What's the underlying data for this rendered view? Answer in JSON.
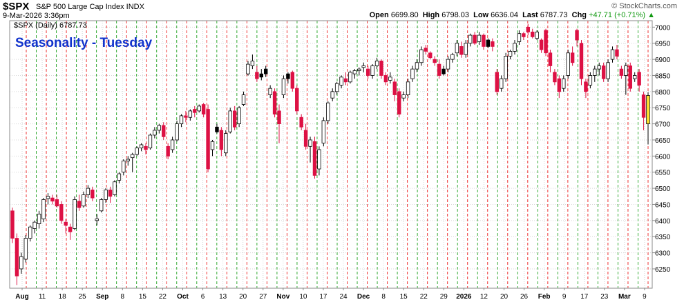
{
  "header": {
    "symbol": "$SPX",
    "description": "S&P 500 Large Cap Index  INDX",
    "datetime": "9-Mar-2026 3:36pm",
    "brand": "© StockCharts.com",
    "open_label": "Open",
    "open": "6699.80",
    "high_label": "High",
    "high": "6798.03",
    "low_label": "Low",
    "low": "6636.04",
    "last_label": "Last",
    "last": "6787.73",
    "chg_label": "Chg",
    "chg": "+47.71 (+0.71%)",
    "chg_arrow": "▲"
  },
  "chart_data": {
    "type": "candlestick",
    "title": "Seasonality - Tuesday",
    "legend": "$SPX (Daily) 6787.73",
    "ylim": [
      6190,
      7020
    ],
    "yticks": [
      6250,
      6300,
      6350,
      6400,
      6450,
      6500,
      6550,
      6600,
      6650,
      6700,
      6750,
      6800,
      6850,
      6900,
      6950,
      7000
    ],
    "xlabels": [
      "Aug",
      "11",
      "18",
      "25",
      "Sep",
      "8",
      "15",
      "22",
      "Oct",
      "6",
      "13",
      "20",
      "27",
      "Nov",
      "10",
      "17",
      "24",
      "Dec",
      "8",
      "15",
      "22",
      "29",
      "2026",
      "12",
      "20",
      "26",
      "Feb",
      "9",
      "17",
      "23",
      "Mar",
      "9"
    ],
    "colors": {
      "up": "#ffffff",
      "down": "#dd1144",
      "highlight": "#ffe030",
      "black": "#000000",
      "green_line": "#33aa33",
      "red_line": "#ee3333",
      "title": "#1133cc"
    },
    "candles": [
      {
        "o": 6430,
        "h": 6440,
        "l": 6330,
        "c": 6345
      },
      {
        "o": 6345,
        "h": 6360,
        "l": 6200,
        "c": 6228
      },
      {
        "o": 6250,
        "h": 6300,
        "l": 6235,
        "c": 6288
      },
      {
        "o": 6280,
        "h": 6355,
        "l": 6270,
        "c": 6345
      },
      {
        "o": 6345,
        "h": 6385,
        "l": 6335,
        "c": 6380
      },
      {
        "o": 6375,
        "h": 6400,
        "l": 6360,
        "c": 6395
      },
      {
        "o": 6390,
        "h": 6430,
        "l": 6375,
        "c": 6420
      },
      {
        "o": 6405,
        "h": 6470,
        "l": 6395,
        "c": 6465
      },
      {
        "o": 6468,
        "h": 6485,
        "l": 6450,
        "c": 6475
      },
      {
        "o": 6470,
        "h": 6480,
        "l": 6450,
        "c": 6460
      },
      {
        "o": 6465,
        "h": 6480,
        "l": 6440,
        "c": 6445
      },
      {
        "o": 6450,
        "h": 6460,
        "l": 6390,
        "c": 6400
      },
      {
        "o": 6395,
        "h": 6405,
        "l": 6360,
        "c": 6385
      },
      {
        "o": 6380,
        "h": 6390,
        "l": 6340,
        "c": 6365
      },
      {
        "o": 6375,
        "h": 6475,
        "l": 6370,
        "c": 6465
      },
      {
        "o": 6460,
        "h": 6480,
        "l": 6430,
        "c": 6440
      },
      {
        "o": 6445,
        "h": 6490,
        "l": 6440,
        "c": 6480
      },
      {
        "o": 6480,
        "h": 6510,
        "l": 6470,
        "c": 6500
      },
      {
        "o": 6495,
        "h": 6505,
        "l": 6460,
        "c": 6470
      },
      {
        "o": 6400,
        "h": 6420,
        "l": 6385,
        "c": 6405
      },
      {
        "o": 6430,
        "h": 6470,
        "l": 6425,
        "c": 6465
      },
      {
        "o": 6465,
        "h": 6500,
        "l": 6455,
        "c": 6495
      },
      {
        "o": 6495,
        "h": 6505,
        "l": 6455,
        "c": 6475
      },
      {
        "o": 6480,
        "h": 6525,
        "l": 6475,
        "c": 6520
      },
      {
        "o": 6525,
        "h": 6550,
        "l": 6515,
        "c": 6545
      },
      {
        "o": 6550,
        "h": 6590,
        "l": 6540,
        "c": 6585
      },
      {
        "o": 6585,
        "h": 6600,
        "l": 6570,
        "c": 6590
      },
      {
        "o": 6595,
        "h": 6610,
        "l": 6550,
        "c": 6605
      },
      {
        "o": 6605,
        "h": 6630,
        "l": 6600,
        "c": 6625
      },
      {
        "o": 6625,
        "h": 6640,
        "l": 6615,
        "c": 6635
      },
      {
        "o": 6630,
        "h": 6640,
        "l": 6605,
        "c": 6620
      },
      {
        "o": 6625,
        "h": 6670,
        "l": 6620,
        "c": 6665
      },
      {
        "o": 6665,
        "h": 6690,
        "l": 6655,
        "c": 6680
      },
      {
        "o": 6680,
        "h": 6700,
        "l": 6670,
        "c": 6695
      },
      {
        "o": 6695,
        "h": 6705,
        "l": 6650,
        "c": 6660
      },
      {
        "o": 6630,
        "h": 6640,
        "l": 6590,
        "c": 6600
      },
      {
        "o": 6620,
        "h": 6660,
        "l": 6610,
        "c": 6650
      },
      {
        "o": 6650,
        "h": 6710,
        "l": 6645,
        "c": 6700
      },
      {
        "o": 6700,
        "h": 6730,
        "l": 6690,
        "c": 6725
      },
      {
        "o": 6725,
        "h": 6740,
        "l": 6705,
        "c": 6720
      },
      {
        "o": 6720,
        "h": 6745,
        "l": 6710,
        "c": 6740
      },
      {
        "o": 6745,
        "h": 6755,
        "l": 6720,
        "c": 6735
      },
      {
        "o": 6740,
        "h": 6760,
        "l": 6735,
        "c": 6755
      },
      {
        "o": 6760,
        "h": 6765,
        "l": 6720,
        "c": 6730
      },
      {
        "o": 6745,
        "h": 6760,
        "l": 6550,
        "c": 6560
      },
      {
        "o": 6620,
        "h": 6650,
        "l": 6600,
        "c": 6645
      },
      {
        "o": 6690,
        "h": 6700,
        "l": 6670,
        "c": 6675,
        "k": 1
      },
      {
        "o": 6680,
        "h": 6690,
        "l": 6600,
        "c": 6620
      },
      {
        "o": 6610,
        "h": 6680,
        "l": 6600,
        "c": 6670
      },
      {
        "o": 6675,
        "h": 6750,
        "l": 6670,
        "c": 6740
      },
      {
        "o": 6740,
        "h": 6755,
        "l": 6680,
        "c": 6690
      },
      {
        "o": 6700,
        "h": 6755,
        "l": 6690,
        "c": 6750
      },
      {
        "o": 6760,
        "h": 6800,
        "l": 6755,
        "c": 6790
      },
      {
        "o": 6855,
        "h": 6895,
        "l": 6850,
        "c": 6885
      },
      {
        "o": 6880,
        "h": 6915,
        "l": 6870,
        "c": 6895
      },
      {
        "o": 6860,
        "h": 6880,
        "l": 6830,
        "c": 6840
      },
      {
        "o": 6845,
        "h": 6870,
        "l": 6835,
        "c": 6855,
        "k": 1
      },
      {
        "o": 6855,
        "h": 6880,
        "l": 6845,
        "c": 6870,
        "k": 1
      },
      {
        "o": 6790,
        "h": 6820,
        "l": 6780,
        "c": 6810
      },
      {
        "o": 6800,
        "h": 6810,
        "l": 6720,
        "c": 6730
      },
      {
        "o": 6740,
        "h": 6760,
        "l": 6640,
        "c": 6700
      },
      {
        "o": 6790,
        "h": 6850,
        "l": 6780,
        "c": 6840
      },
      {
        "o": 6840,
        "h": 6860,
        "l": 6825,
        "c": 6855,
        "k": 1
      },
      {
        "o": 6860,
        "h": 6865,
        "l": 6800,
        "c": 6810
      },
      {
        "o": 6810,
        "h": 6820,
        "l": 6730,
        "c": 6740
      },
      {
        "o": 6720,
        "h": 6730,
        "l": 6680,
        "c": 6690
      },
      {
        "o": 6680,
        "h": 6700,
        "l": 6620,
        "c": 6630
      },
      {
        "o": 6630,
        "h": 6660,
        "l": 6580,
        "c": 6650
      },
      {
        "o": 6645,
        "h": 6660,
        "l": 6530,
        "c": 6540
      },
      {
        "o": 6560,
        "h": 6630,
        "l": 6540,
        "c": 6620
      },
      {
        "o": 6640,
        "h": 6720,
        "l": 6630,
        "c": 6710
      },
      {
        "o": 6710,
        "h": 6770,
        "l": 6700,
        "c": 6765
      },
      {
        "o": 6780,
        "h": 6810,
        "l": 6770,
        "c": 6800
      },
      {
        "o": 6800,
        "h": 6830,
        "l": 6790,
        "c": 6825
      },
      {
        "o": 6820,
        "h": 6850,
        "l": 6810,
        "c": 6845
      },
      {
        "o": 6840,
        "h": 6860,
        "l": 6820,
        "c": 6830
      },
      {
        "o": 6830,
        "h": 6865,
        "l": 6825,
        "c": 6860
      },
      {
        "o": 6855,
        "h": 6870,
        "l": 6840,
        "c": 6865
      },
      {
        "o": 6865,
        "h": 6875,
        "l": 6850,
        "c": 6870
      },
      {
        "o": 6875,
        "h": 6890,
        "l": 6860,
        "c": 6880
      },
      {
        "o": 6870,
        "h": 6880,
        "l": 6840,
        "c": 6850
      },
      {
        "o": 6850,
        "h": 6885,
        "l": 6840,
        "c": 6880
      },
      {
        "o": 6880,
        "h": 6905,
        "l": 6870,
        "c": 6895
      },
      {
        "o": 6895,
        "h": 6900,
        "l": 6840,
        "c": 6850
      },
      {
        "o": 6850,
        "h": 6860,
        "l": 6820,
        "c": 6830
      },
      {
        "o": 6835,
        "h": 6860,
        "l": 6825,
        "c": 6845
      },
      {
        "o": 6830,
        "h": 6840,
        "l": 6770,
        "c": 6790
      },
      {
        "o": 6800,
        "h": 6810,
        "l": 6720,
        "c": 6730
      },
      {
        "o": 6780,
        "h": 6800,
        "l": 6770,
        "c": 6790
      },
      {
        "o": 6790,
        "h": 6840,
        "l": 6780,
        "c": 6830
      },
      {
        "o": 6840,
        "h": 6880,
        "l": 6830,
        "c": 6870
      },
      {
        "o": 6870,
        "h": 6900,
        "l": 6860,
        "c": 6890
      },
      {
        "o": 6890,
        "h": 6940,
        "l": 6880,
        "c": 6930
      },
      {
        "o": 6935,
        "h": 6945,
        "l": 6915,
        "c": 6925
      },
      {
        "o": 6920,
        "h": 6925,
        "l": 6900,
        "c": 6905
      },
      {
        "o": 6900,
        "h": 6910,
        "l": 6880,
        "c": 6890
      },
      {
        "o": 6885,
        "h": 6900,
        "l": 6840,
        "c": 6850
      },
      {
        "o": 6855,
        "h": 6880,
        "l": 6850,
        "c": 6870,
        "k": 1
      },
      {
        "o": 6870,
        "h": 6910,
        "l": 6860,
        "c": 6900
      },
      {
        "o": 6900,
        "h": 6920,
        "l": 6890,
        "c": 6915
      },
      {
        "o": 6920,
        "h": 6960,
        "l": 6910,
        "c": 6950
      },
      {
        "o": 6940,
        "h": 6955,
        "l": 6905,
        "c": 6915
      },
      {
        "o": 6915,
        "h": 6960,
        "l": 6905,
        "c": 6950
      },
      {
        "o": 6950,
        "h": 6980,
        "l": 6940,
        "c": 6975
      },
      {
        "o": 6975,
        "h": 6985,
        "l": 6945,
        "c": 6950
      },
      {
        "o": 6955,
        "h": 6985,
        "l": 6945,
        "c": 6975
      },
      {
        "o": 6975,
        "h": 6980,
        "l": 6930,
        "c": 6940
      },
      {
        "o": 6940,
        "h": 6965,
        "l": 6935,
        "c": 6960,
        "k": 1
      },
      {
        "o": 6955,
        "h": 6965,
        "l": 6925,
        "c": 6940
      },
      {
        "o": 6860,
        "h": 6870,
        "l": 6790,
        "c": 6800
      },
      {
        "o": 6810,
        "h": 6850,
        "l": 6800,
        "c": 6840
      },
      {
        "o": 6840,
        "h": 6920,
        "l": 6830,
        "c": 6910
      },
      {
        "o": 6910,
        "h": 6930,
        "l": 6900,
        "c": 6925
      },
      {
        "o": 6925,
        "h": 6960,
        "l": 6915,
        "c": 6950
      },
      {
        "o": 6955,
        "h": 6990,
        "l": 6945,
        "c": 6980
      },
      {
        "o": 6980,
        "h": 6985,
        "l": 6960,
        "c": 6970
      },
      {
        "o": 7000,
        "h": 7010,
        "l": 6975,
        "c": 6985
      },
      {
        "o": 6985,
        "h": 6995,
        "l": 6965,
        "c": 6970
      },
      {
        "o": 6965,
        "h": 6990,
        "l": 6960,
        "c": 6985
      },
      {
        "o": 6960,
        "h": 6965,
        "l": 6920,
        "c": 6930
      },
      {
        "o": 6990,
        "h": 6995,
        "l": 6910,
        "c": 6920
      },
      {
        "o": 6920,
        "h": 6930,
        "l": 6860,
        "c": 6880
      },
      {
        "o": 6860,
        "h": 6870,
        "l": 6820,
        "c": 6830
      },
      {
        "o": 6840,
        "h": 6850,
        "l": 6780,
        "c": 6800
      },
      {
        "o": 6810,
        "h": 6850,
        "l": 6800,
        "c": 6840
      },
      {
        "o": 6850,
        "h": 6930,
        "l": 6840,
        "c": 6920
      },
      {
        "o": 6920,
        "h": 6940,
        "l": 6880,
        "c": 6890
      },
      {
        "o": 6990,
        "h": 6995,
        "l": 6940,
        "c": 6960
      },
      {
        "o": 6950,
        "h": 6960,
        "l": 6820,
        "c": 6840
      },
      {
        "o": 6830,
        "h": 6840,
        "l": 6780,
        "c": 6800
      },
      {
        "o": 6820,
        "h": 6860,
        "l": 6810,
        "c": 6850
      },
      {
        "o": 6850,
        "h": 6880,
        "l": 6830,
        "c": 6870
      },
      {
        "o": 6870,
        "h": 6890,
        "l": 6850,
        "c": 6880
      },
      {
        "o": 6880,
        "h": 6890,
        "l": 6830,
        "c": 6840
      },
      {
        "o": 6840,
        "h": 6900,
        "l": 6830,
        "c": 6890
      },
      {
        "o": 6900,
        "h": 6940,
        "l": 6890,
        "c": 6930
      },
      {
        "o": 6930,
        "h": 6945,
        "l": 6900,
        "c": 6910
      },
      {
        "o": 6870,
        "h": 6880,
        "l": 6840,
        "c": 6850
      },
      {
        "o": 6850,
        "h": 6890,
        "l": 6790,
        "c": 6880
      },
      {
        "o": 6880,
        "h": 6890,
        "l": 6800,
        "c": 6810
      },
      {
        "o": 6840,
        "h": 6860,
        "l": 6830,
        "c": 6850
      },
      {
        "o": 6860,
        "h": 6870,
        "l": 6800,
        "c": 6820
      },
      {
        "o": 6790,
        "h": 6800,
        "l": 6680,
        "c": 6720
      },
      {
        "o": 6700,
        "h": 6798,
        "l": 6636,
        "c": 6788,
        "y": 1
      }
    ]
  }
}
